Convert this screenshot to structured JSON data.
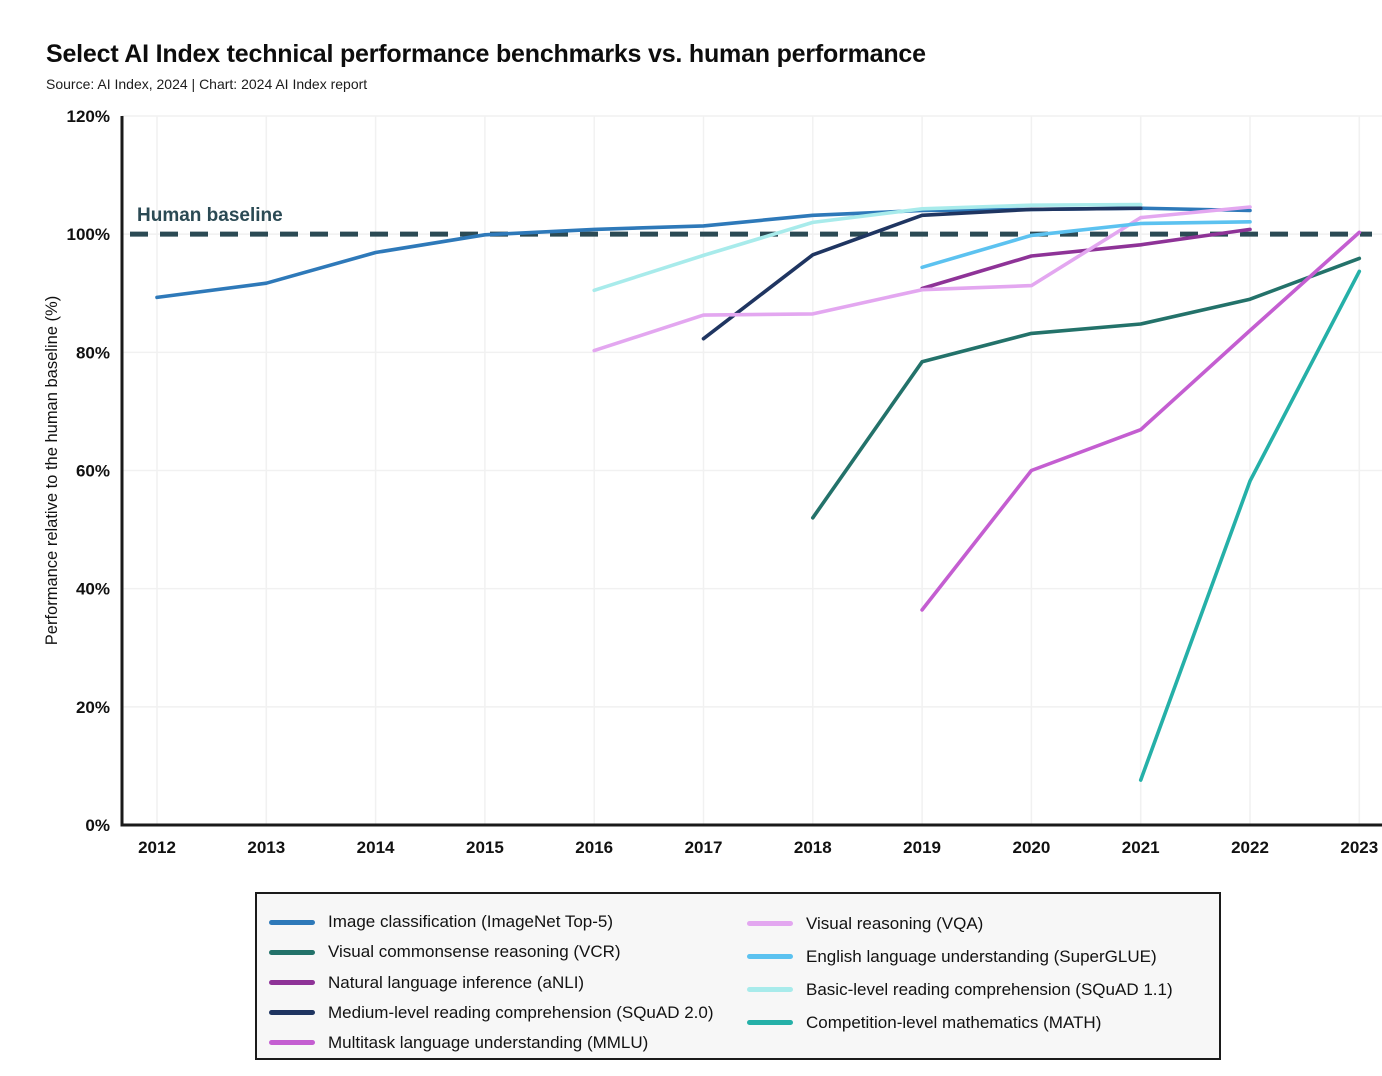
{
  "title": "Select AI Index technical performance benchmarks vs. human performance",
  "source": "Source: AI Index, 2024 | Chart: 2024 AI Index report",
  "chart_data": {
    "type": "line",
    "title": "Select AI Index technical performance benchmarks vs. human performance",
    "xlabel": "",
    "ylabel": "Performance relative to the human baseline (%)",
    "xlim": [
      2012,
      2023
    ],
    "ylim": [
      0,
      120
    ],
    "grid": true,
    "legend_position": "bottom",
    "x_ticks": [
      2012,
      2013,
      2014,
      2015,
      2016,
      2017,
      2018,
      2019,
      2020,
      2021,
      2022,
      2023
    ],
    "y_tick_values": [
      0,
      20,
      40,
      60,
      80,
      100,
      120
    ],
    "y_tick_labels": [
      "0%",
      "20%",
      "40%",
      "60%",
      "80%",
      "100%",
      "120%"
    ],
    "baseline": {
      "label": "Human baseline",
      "value": 100,
      "color": "#2b4a54",
      "style": "dashed"
    },
    "series": [
      {
        "name": "Image classification (ImageNet Top-5)",
        "color": "#2e79b9",
        "x": [
          2012,
          2013,
          2014,
          2015,
          2016,
          2017,
          2018,
          2019,
          2020,
          2021,
          2022
        ],
        "values": [
          89.3,
          91.7,
          96.9,
          99.9,
          100.8,
          101.4,
          103.2,
          104.0,
          104.2,
          104.4,
          104.0
        ]
      },
      {
        "name": "Visual commonsense reasoning (VCR)",
        "color": "#23726a",
        "x": [
          2018,
          2019,
          2020,
          2021,
          2022,
          2023
        ],
        "values": [
          52.0,
          78.4,
          83.2,
          84.8,
          89.0,
          95.9
        ]
      },
      {
        "name": "Natural language inference (aNLI)",
        "color": "#8e3397",
        "x": [
          2019,
          2020,
          2021,
          2022
        ],
        "values": [
          90.8,
          96.3,
          98.2,
          100.8
        ]
      },
      {
        "name": "Medium-level reading comprehension (SQuAD 2.0)",
        "color": "#1f3561",
        "x": [
          2017,
          2018,
          2019,
          2020,
          2021
        ],
        "values": [
          82.3,
          96.5,
          103.2,
          104.2,
          104.4
        ]
      },
      {
        "name": "Multitask language understanding (MMLU)",
        "color": "#c45ed1",
        "x": [
          2019,
          2020,
          2021,
          2022,
          2023
        ],
        "values": [
          36.4,
          60.0,
          66.9,
          83.7,
          100.3
        ]
      },
      {
        "name": "Visual reasoning (VQA)",
        "color": "#e3a7f0",
        "x": [
          2016,
          2017,
          2018,
          2019,
          2020,
          2021,
          2022
        ],
        "values": [
          80.3,
          86.3,
          86.5,
          90.6,
          91.3,
          102.8,
          104.6
        ]
      },
      {
        "name": "English language understanding (SuperGLUE)",
        "color": "#5cc2f0",
        "x": [
          2019,
          2020,
          2021,
          2022
        ],
        "values": [
          94.4,
          99.8,
          101.8,
          102.1
        ]
      },
      {
        "name": "Basic-level reading comprehension (SQuAD 1.1)",
        "color": "#a8ebeb",
        "x": [
          2016,
          2017,
          2018,
          2019,
          2020,
          2021
        ],
        "values": [
          90.5,
          96.4,
          102.0,
          104.3,
          104.9,
          105.0
        ]
      },
      {
        "name": "Competition-level mathematics (MATH)",
        "color": "#25b0a8",
        "x": [
          2021,
          2022,
          2023
        ],
        "values": [
          7.6,
          58.2,
          93.7
        ]
      }
    ],
    "legend_columns": [
      [
        0,
        1,
        2,
        3,
        4
      ],
      [
        5,
        6,
        7,
        8
      ]
    ]
  }
}
